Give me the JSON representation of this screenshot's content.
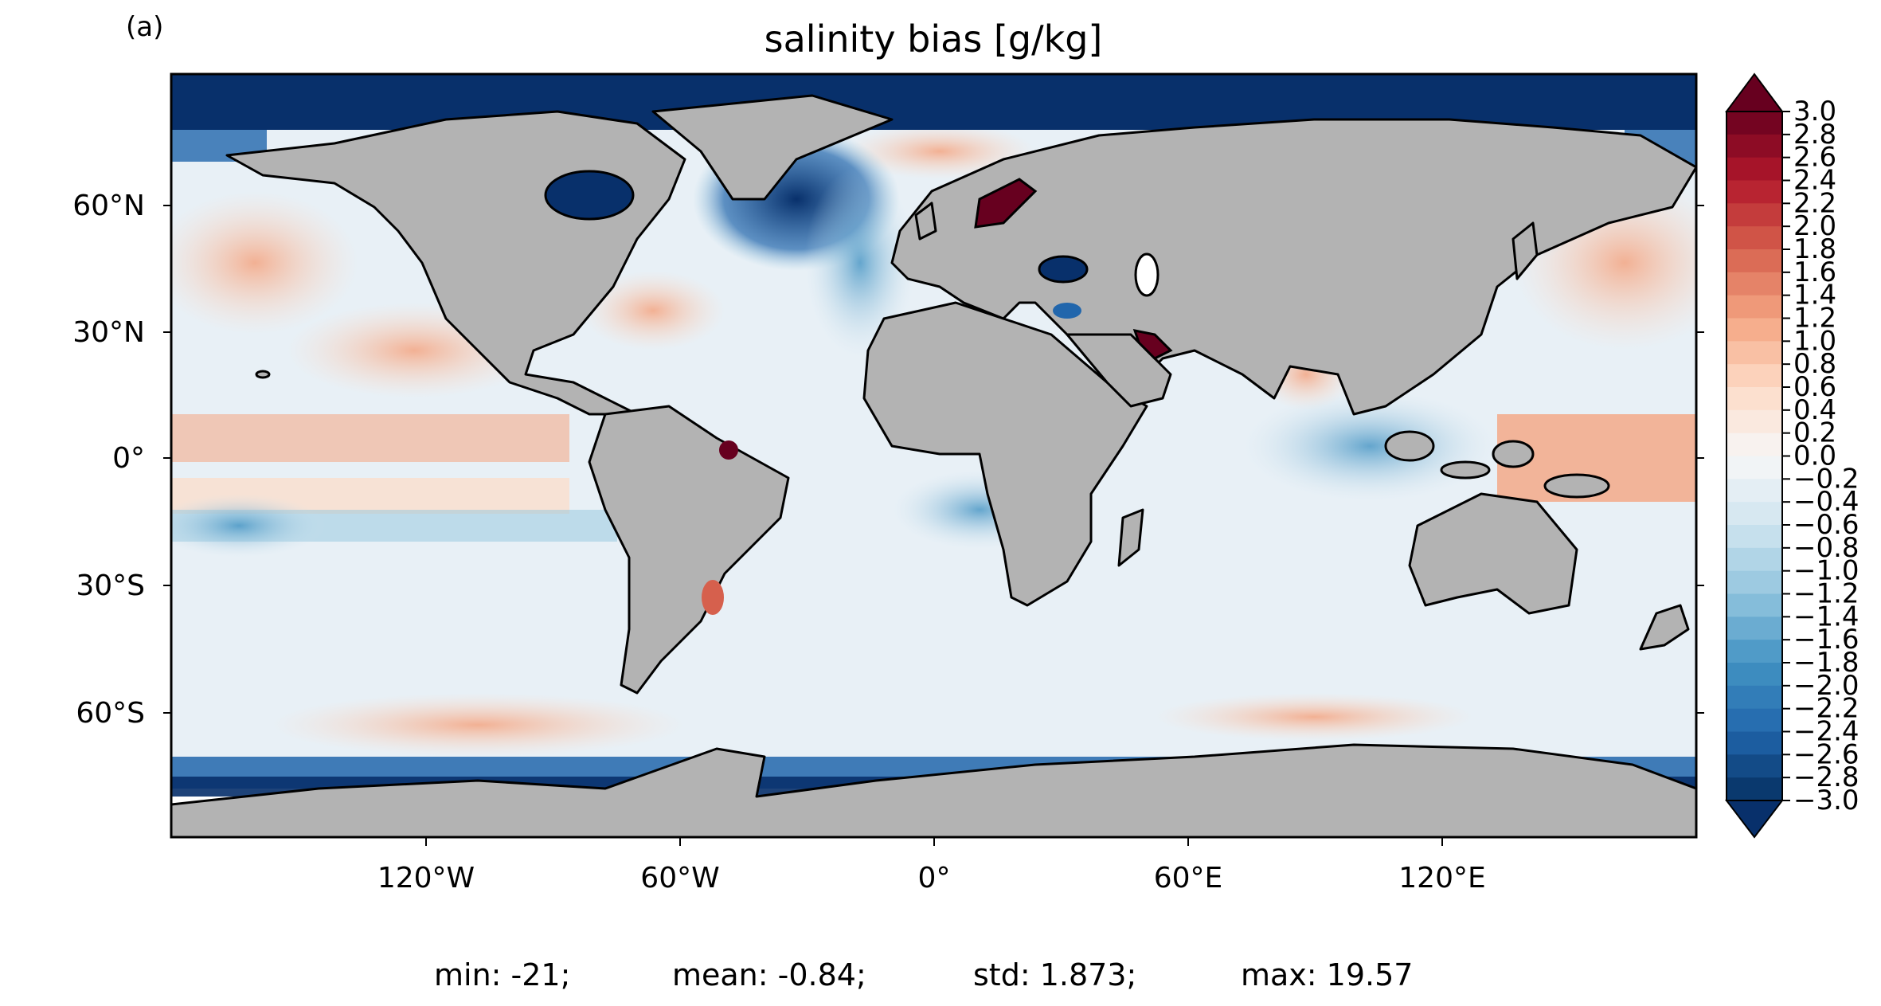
{
  "panel_label": "(a)",
  "title": "salinity bias [g/kg]",
  "lat_ticks": [
    "60°N",
    "30°N",
    "0°",
    "30°S",
    "60°S"
  ],
  "lon_ticks": [
    "120°W",
    "60°W",
    "0°",
    "60°E",
    "120°E"
  ],
  "colorbar": {
    "min": -3.0,
    "max": 3.0,
    "step": 0.2,
    "extend": "both",
    "colormap": "RdBu_r",
    "tick_labels": [
      "3.0",
      "2.8",
      "2.6",
      "2.4",
      "2.2",
      "2.0",
      "1.8",
      "1.6",
      "1.4",
      "1.2",
      "1.0",
      "0.8",
      "0.6",
      "0.4",
      "0.2",
      "0.0",
      "−0.2",
      "−0.4",
      "−0.6",
      "−0.8",
      "−1.0",
      "−1.2",
      "−1.4",
      "−1.6",
      "−1.8",
      "−2.0",
      "−2.2",
      "−2.4",
      "−2.6",
      "−2.8",
      "−3.0"
    ]
  },
  "stats": {
    "min": "min: -21;",
    "mean": "mean: -0.84;",
    "std": "std: 1.873;",
    "max": "max: 19.57"
  },
  "colors": {
    "land": "#b3b3b3",
    "coast": "#000000",
    "deep_blue": "#08306b",
    "strong_blue": "#2166ac",
    "light_blue": "#d1e5f0",
    "neutral": "#f7f7f7",
    "light_red": "#fddbc7",
    "red": "#d6604d",
    "dark_red": "#67001f"
  }
}
